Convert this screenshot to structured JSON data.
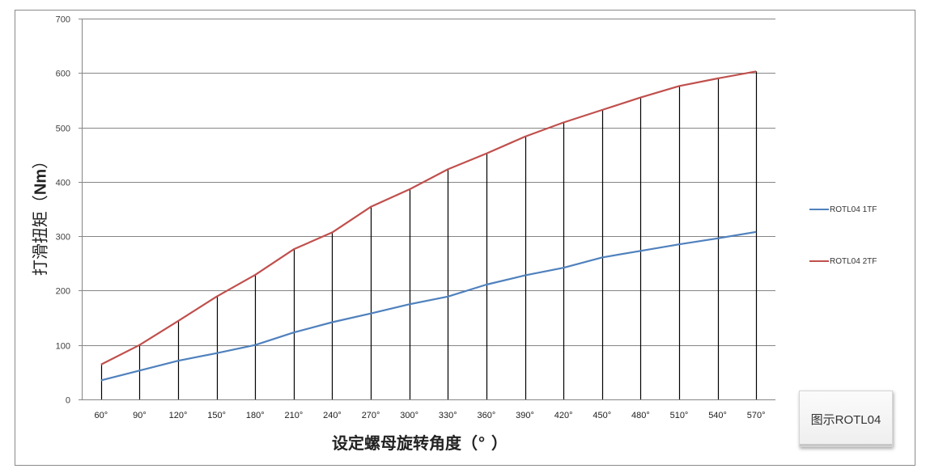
{
  "chart_data": {
    "type": "line",
    "title": "",
    "xlabel": "设定螺母旋转角度（°  ）",
    "ylabel": "打滑扭矩（Nm）",
    "ylim": [
      0,
      700
    ],
    "yticks": [
      0,
      100,
      200,
      300,
      400,
      500,
      600,
      700
    ],
    "grid": "horizontal major gridlines",
    "drop_lines": true,
    "legend_position": "right",
    "categories": [
      "60°",
      "90°",
      "120°",
      "150°",
      "180°",
      "210°",
      "240°",
      "270°",
      "300°",
      "330°",
      "360°",
      "390°",
      "420°",
      "450°",
      "480°",
      "510°",
      "540°",
      "570°"
    ],
    "series": [
      {
        "name": "ROTL04 1TF",
        "color": "#4f81bd",
        "values": [
          35,
          53,
          71,
          85,
          100,
          123,
          142,
          158,
          175,
          189,
          211,
          228,
          242,
          261,
          273,
          285,
          296,
          308
        ]
      },
      {
        "name": "ROTL04 2TF",
        "color": "#c0504d",
        "values": [
          64,
          100,
          144,
          189,
          229,
          276,
          307,
          354,
          386,
          423,
          452,
          483,
          509,
          532,
          555,
          576,
          590,
          603
        ]
      }
    ]
  },
  "axes": {
    "y_title_main": "打滑扭矩（",
    "y_title_unit": "Nm",
    "y_title_close": "）",
    "x_title": "设定螺母旋转角度（°  ）"
  },
  "legend": {
    "items": [
      {
        "label": "ROTL04 1TF",
        "color": "#4f81bd"
      },
      {
        "label": "ROTL04 2TF",
        "color": "#c0504d"
      }
    ]
  },
  "caption_button": {
    "label": "图示ROTL04"
  }
}
